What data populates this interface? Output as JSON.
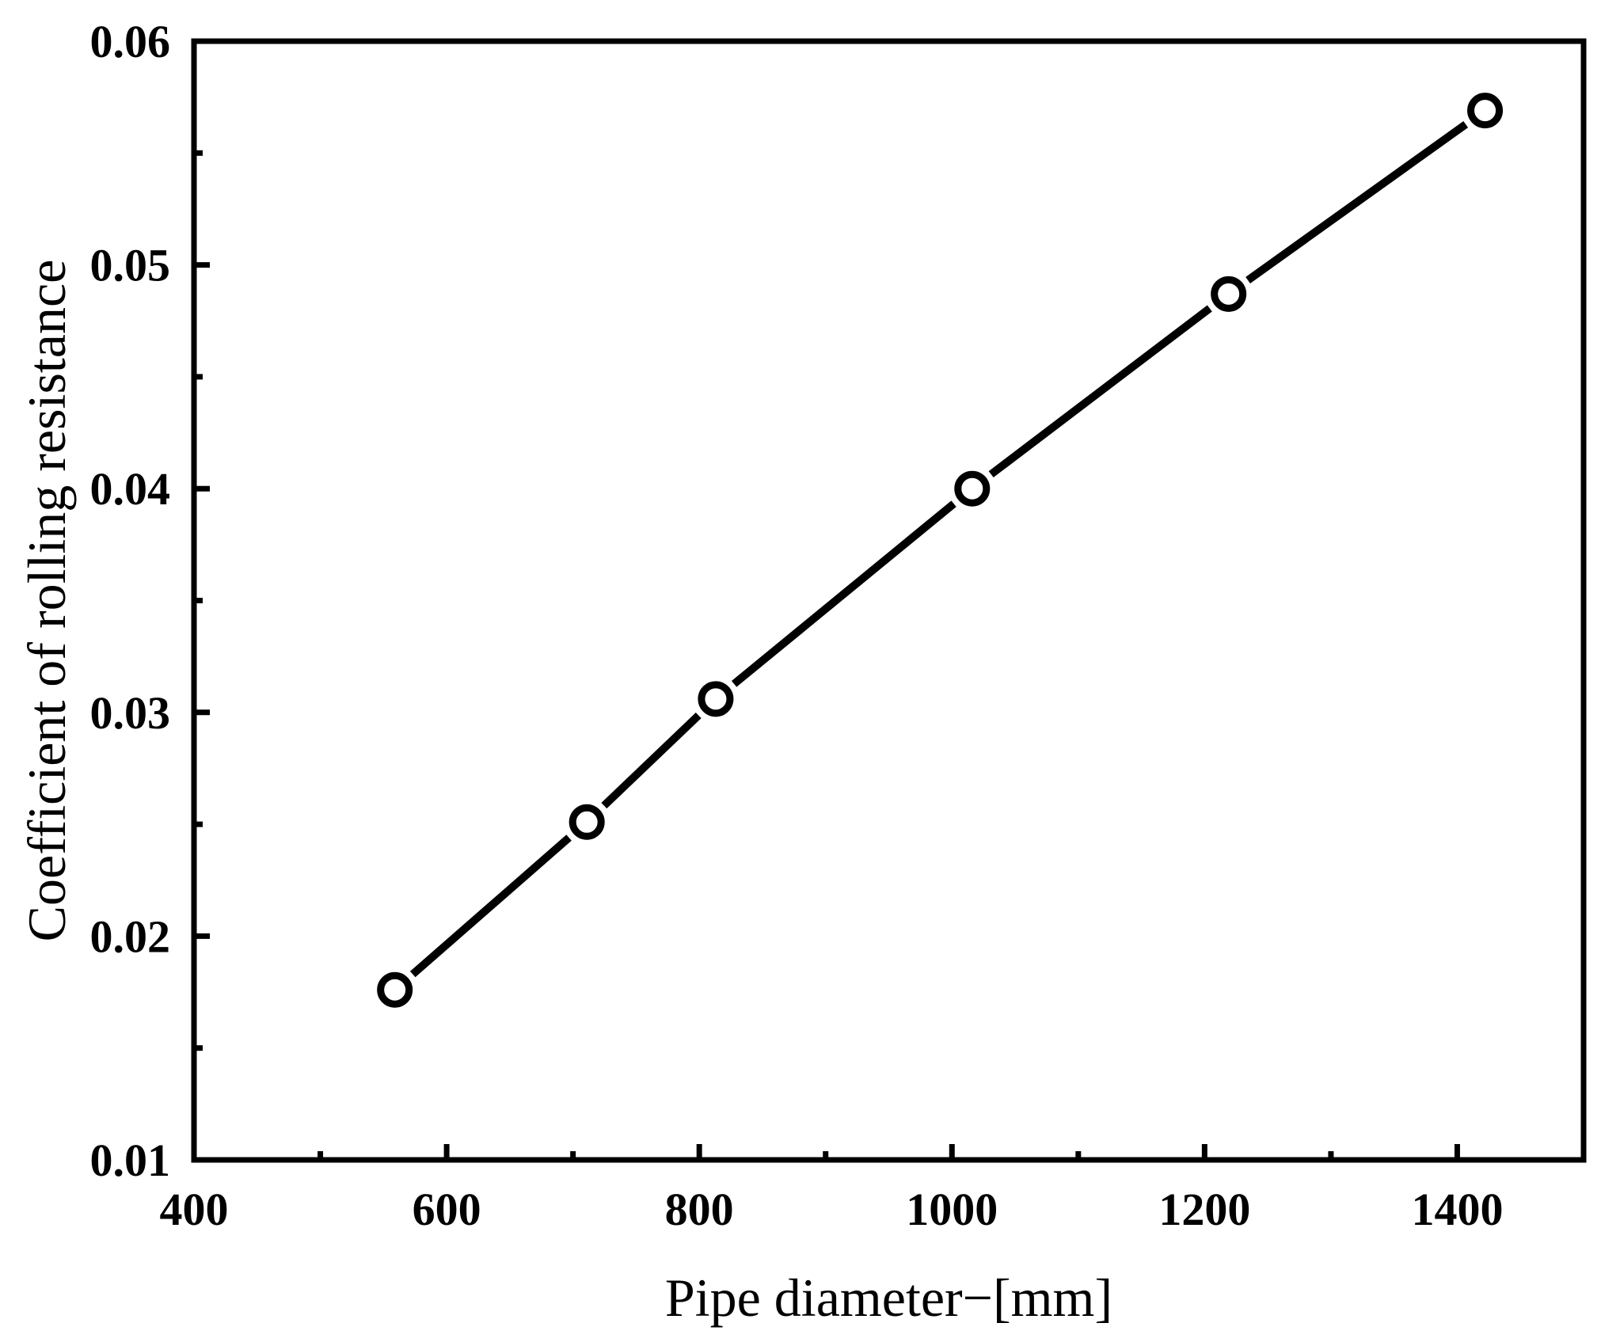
{
  "chart_data": {
    "type": "line",
    "title": "",
    "xlabel": "Pipe diameter−[mm]",
    "ylabel": "Coefficient of rolling resistance",
    "xlim": [
      400,
      1500
    ],
    "ylim": [
      0.01,
      0.06
    ],
    "x_ticks": [
      400,
      600,
      800,
      1000,
      1200,
      1400
    ],
    "x_tick_labels": [
      "400",
      "600",
      "800",
      "1000",
      "1200",
      "1400"
    ],
    "x_minor_ticks": [
      500,
      700,
      900,
      1100,
      1300
    ],
    "y_ticks": [
      0.01,
      0.02,
      0.03,
      0.04,
      0.05,
      0.06
    ],
    "y_tick_labels": [
      "0.01",
      "0.02",
      "0.03",
      "0.04",
      "0.05",
      "0.06"
    ],
    "y_minor_ticks": [
      0.015,
      0.025,
      0.035,
      0.045,
      0.055
    ],
    "grid": false,
    "legend": "none",
    "series": [
      {
        "marker": "open-circle",
        "color": "#000000",
        "x": [
          559,
          711,
          813,
          1016,
          1219,
          1422
        ],
        "y": [
          0.0176,
          0.0251,
          0.0306,
          0.04,
          0.0487,
          0.0569
        ]
      }
    ]
  }
}
